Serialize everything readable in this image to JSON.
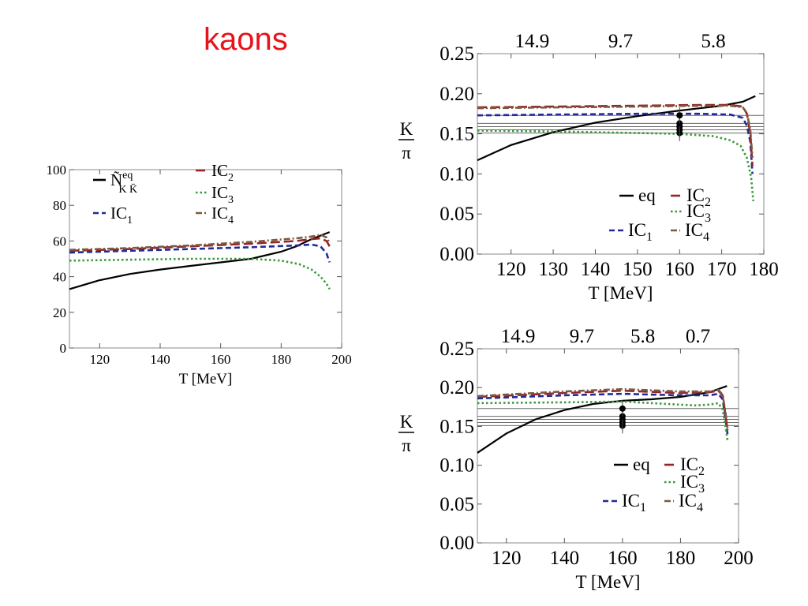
{
  "page": {
    "title": "kaons",
    "title_color": "#e8121b"
  },
  "colors": {
    "eq": "#000000",
    "IC1": "#1f2a9c",
    "IC2": "#962424",
    "IC3": "#3a9a3a",
    "IC4": "#7a5a40",
    "reference": "#6a6a6a",
    "data_points": "#000000"
  },
  "chart_data": [
    {
      "id": "left",
      "type": "line",
      "xlabel": "T [MeV]",
      "ylabel": "",
      "xlim": [
        110,
        200
      ],
      "ylim": [
        0,
        100
      ],
      "xticks": [
        120,
        140,
        160,
        180,
        200
      ],
      "yticks": [
        0,
        20,
        40,
        60,
        80,
        100
      ],
      "grid": false,
      "legend": {
        "placement": "top-left",
        "entries": [
          {
            "series": "eq",
            "main": "Ñ",
            "sup": "eq",
            "sub": "K K̄"
          },
          {
            "series": "IC2",
            "main": "IC",
            "sub": "2"
          },
          {
            "series": "IC3",
            "main": "IC",
            "sub": "3"
          },
          {
            "series": "IC1",
            "main": "IC",
            "sub": "1"
          },
          {
            "series": "IC4",
            "main": "IC",
            "sub": "4"
          }
        ]
      },
      "series": [
        {
          "key": "eq",
          "style": "solid",
          "x": [
            110,
            120,
            130,
            140,
            150,
            160,
            170,
            180,
            185,
            190,
            193,
            196
          ],
          "y": [
            33,
            38,
            41.5,
            44,
            46,
            48,
            50,
            54,
            57,
            61,
            63,
            65
          ]
        },
        {
          "key": "IC1",
          "style": "dashed",
          "x": [
            110,
            130,
            150,
            170,
            185,
            190,
            193,
            195,
            196
          ],
          "y": [
            53.5,
            54.5,
            55.5,
            56.5,
            57.5,
            58,
            57,
            53,
            48
          ]
        },
        {
          "key": "IC2",
          "style": "longdash",
          "x": [
            110,
            130,
            150,
            170,
            185,
            190,
            193,
            195,
            196
          ],
          "y": [
            54.5,
            55.5,
            57,
            58.5,
            60,
            61,
            61.5,
            60,
            57
          ]
        },
        {
          "key": "IC3",
          "style": "dotted",
          "x": [
            110,
            130,
            150,
            170,
            180,
            186,
            190,
            193,
            195,
            196
          ],
          "y": [
            49,
            49.5,
            50,
            50,
            49,
            47,
            44,
            40,
            36,
            33
          ]
        },
        {
          "key": "IC4",
          "style": "dashdot",
          "x": [
            110,
            130,
            150,
            170,
            185,
            190,
            193,
            195,
            196
          ],
          "y": [
            55,
            56,
            57.5,
            59.5,
            61.5,
            62.5,
            63.5,
            62,
            59
          ]
        }
      ]
    },
    {
      "id": "top-right",
      "type": "line",
      "ylabel_num": "K",
      "ylabel_den": "π",
      "xlabel": "T [MeV]",
      "xlim": [
        112,
        180
      ],
      "ylim": [
        0,
        0.25
      ],
      "xticks": [
        120,
        130,
        140,
        150,
        160,
        170,
        180
      ],
      "yticks": [
        "0.00",
        "0.05",
        "0.10",
        "0.15",
        "0.20",
        "0.25"
      ],
      "secondary_xticks": [
        {
          "x": 125,
          "label": "14.9"
        },
        {
          "x": 146,
          "label": "9.7"
        },
        {
          "x": 168,
          "label": "5.8"
        }
      ],
      "reference_lines": [
        0.151,
        0.155,
        0.159,
        0.163,
        0.173
      ],
      "data_points": {
        "x": 160,
        "y": [
          0.151,
          0.155,
          0.159,
          0.163,
          0.173
        ],
        "yerr": [
          0.01,
          0.01,
          0.01,
          0.01,
          0.01
        ]
      },
      "legend": {
        "placement": "bottom-right",
        "entries": [
          {
            "series": "eq",
            "main": "eq"
          },
          {
            "series": "IC2",
            "main": "IC",
            "sub": "2"
          },
          {
            "series": "IC3",
            "main": "IC",
            "sub": "3"
          },
          {
            "series": "IC1",
            "main": "IC",
            "sub": "1"
          },
          {
            "series": "IC4",
            "main": "IC",
            "sub": "4"
          }
        ]
      },
      "series": [
        {
          "key": "eq",
          "style": "solid",
          "x": [
            112,
            120,
            130,
            140,
            150,
            160,
            170,
            175,
            178
          ],
          "y": [
            0.117,
            0.136,
            0.152,
            0.164,
            0.172,
            0.179,
            0.185,
            0.19,
            0.197
          ]
        },
        {
          "key": "IC1",
          "style": "dashed",
          "x": [
            112,
            130,
            150,
            165,
            172,
            175,
            176,
            176.8,
            177.3
          ],
          "y": [
            0.173,
            0.174,
            0.175,
            0.175,
            0.174,
            0.17,
            0.16,
            0.14,
            0.1
          ]
        },
        {
          "key": "IC2",
          "style": "longdash",
          "x": [
            112,
            130,
            150,
            165,
            172,
            175,
            176,
            176.8,
            177.3
          ],
          "y": [
            0.183,
            0.184,
            0.185,
            0.186,
            0.186,
            0.184,
            0.175,
            0.15,
            0.11
          ]
        },
        {
          "key": "IC3",
          "style": "dotted",
          "x": [
            112,
            130,
            150,
            160,
            168,
            172,
            174.5,
            176,
            177,
            177.5
          ],
          "y": [
            0.154,
            0.153,
            0.151,
            0.15,
            0.147,
            0.142,
            0.135,
            0.12,
            0.095,
            0.066
          ]
        },
        {
          "key": "IC4",
          "style": "dashdot",
          "x": [
            112,
            130,
            150,
            165,
            172,
            175,
            176,
            176.8,
            177.3
          ],
          "y": [
            0.182,
            0.183,
            0.184,
            0.185,
            0.185,
            0.183,
            0.176,
            0.155,
            0.12
          ]
        }
      ]
    },
    {
      "id": "bottom-right",
      "type": "line",
      "ylabel_num": "K",
      "ylabel_den": "π",
      "xlabel": "T [MeV]",
      "xlim": [
        110,
        200
      ],
      "ylim": [
        0,
        0.25
      ],
      "xticks": [
        120,
        140,
        160,
        180,
        200
      ],
      "yticks": [
        "0.00",
        "0.05",
        "0.10",
        "0.15",
        "0.20",
        "0.25"
      ],
      "secondary_xticks": [
        {
          "x": 124,
          "label": "14.9"
        },
        {
          "x": 146,
          "label": "9.7"
        },
        {
          "x": 167,
          "label": "5.8"
        },
        {
          "x": 186,
          "label": "0.7"
        }
      ],
      "reference_lines": [
        0.151,
        0.155,
        0.159,
        0.163,
        0.173
      ],
      "data_points": {
        "x": 160,
        "y": [
          0.151,
          0.155,
          0.159,
          0.163,
          0.173
        ],
        "yerr": [
          0.01,
          0.01,
          0.01,
          0.01,
          0.01
        ]
      },
      "legend": {
        "placement": "bottom-right",
        "entries": [
          {
            "series": "eq",
            "main": "eq"
          },
          {
            "series": "IC2",
            "main": "IC",
            "sub": "2"
          },
          {
            "series": "IC3",
            "main": "IC",
            "sub": "3"
          },
          {
            "series": "IC1",
            "main": "IC",
            "sub": "1"
          },
          {
            "series": "IC4",
            "main": "IC",
            "sub": "4"
          }
        ]
      },
      "series": [
        {
          "key": "eq",
          "style": "solid",
          "x": [
            110,
            120,
            130,
            140,
            150,
            160,
            170,
            180,
            190,
            196
          ],
          "y": [
            0.116,
            0.141,
            0.159,
            0.171,
            0.179,
            0.183,
            0.185,
            0.188,
            0.194,
            0.202
          ]
        },
        {
          "key": "IC1",
          "style": "dashed",
          "x": [
            110,
            140,
            160,
            180,
            190,
            193,
            194.5,
            195.5,
            196.2
          ],
          "y": [
            0.186,
            0.19,
            0.192,
            0.19,
            0.19,
            0.192,
            0.185,
            0.16,
            0.14
          ]
        },
        {
          "key": "IC2",
          "style": "longdash",
          "x": [
            110,
            140,
            160,
            180,
            190,
            193,
            194.5,
            195.5,
            196.2
          ],
          "y": [
            0.188,
            0.193,
            0.196,
            0.193,
            0.194,
            0.196,
            0.19,
            0.165,
            0.145
          ]
        },
        {
          "key": "IC3",
          "style": "dotted",
          "x": [
            110,
            140,
            160,
            175,
            185,
            190,
            193,
            194.5,
            195.5,
            196.2
          ],
          "y": [
            0.18,
            0.181,
            0.182,
            0.179,
            0.177,
            0.178,
            0.18,
            0.172,
            0.15,
            0.132
          ]
        },
        {
          "key": "IC4",
          "style": "dashdot",
          "x": [
            110,
            140,
            160,
            180,
            190,
            193,
            194.5,
            195.5,
            196.2
          ],
          "y": [
            0.189,
            0.195,
            0.198,
            0.195,
            0.195,
            0.197,
            0.191,
            0.168,
            0.148
          ]
        }
      ]
    }
  ]
}
